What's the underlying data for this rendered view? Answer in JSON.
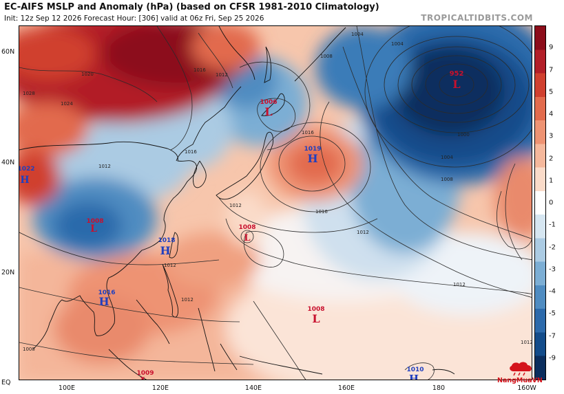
{
  "header": {
    "title": "EC-AIFS MSLP and Anomaly (hPa) (based on CFSR 1981-2010 Climatology)",
    "subtitle": "Init: 12z Sep 12 2026   Forecast Hour: [306]   valid at 06z Fri, Sep 25 2026",
    "brand": "TROPICALTIDBITS.COM"
  },
  "axes": {
    "lat_labels": [
      "60N",
      "40N",
      "20N",
      "EQ"
    ],
    "lon_labels": [
      "100E",
      "120E",
      "140E",
      "160E",
      "180",
      "160W"
    ]
  },
  "colorbar": {
    "labels": [
      "9",
      "7",
      "5",
      "4",
      "3",
      "2",
      "1",
      "0",
      "-1",
      "-2",
      "-3",
      "-4",
      "-5",
      "-7",
      "-9"
    ],
    "colors": [
      "#8c0d1a",
      "#b21f28",
      "#d0402f",
      "#e26b4d",
      "#ee9373",
      "#f5b89c",
      "#fadbc9",
      "#ffffff",
      "#d6e6f1",
      "#abcbe3",
      "#7caed4",
      "#4f8cc1",
      "#2c6aab",
      "#134c8a",
      "#0b2e5e"
    ]
  },
  "pressure_centers": [
    {
      "type": "L",
      "value": "952",
      "color": "#c8102e"
    },
    {
      "type": "L",
      "value": "1006",
      "color": "#c8102e"
    },
    {
      "type": "H",
      "value": "1019",
      "color": "#1f3fbf"
    },
    {
      "type": "H",
      "value": "1022",
      "color": "#1f3fbf"
    },
    {
      "type": "L",
      "value": "1008",
      "color": "#c8102e"
    },
    {
      "type": "L",
      "value": "1008",
      "color": "#c8102e"
    },
    {
      "type": "H",
      "value": "1018",
      "color": "#1f3fbf"
    },
    {
      "type": "H",
      "value": "1016",
      "color": "#1f3fbf"
    },
    {
      "type": "L",
      "value": "1008",
      "color": "#c8102e"
    },
    {
      "type": "L",
      "value": "1009",
      "color": "#c8102e"
    },
    {
      "type": "H",
      "value": "1010",
      "color": "#1f3fbf"
    }
  ],
  "contour_labels": [
    "1004",
    "1008",
    "1012",
    "1016",
    "1020",
    "1012",
    "1016",
    "1016",
    "1012",
    "1012",
    "1008",
    "1004",
    "1000",
    "1004",
    "1012",
    "1008",
    "1012",
    "1012",
    "1016",
    "1028",
    "1024",
    "1012"
  ],
  "logo": {
    "text": "NangMuaVN",
    "icon": "cloud-rain-icon"
  }
}
